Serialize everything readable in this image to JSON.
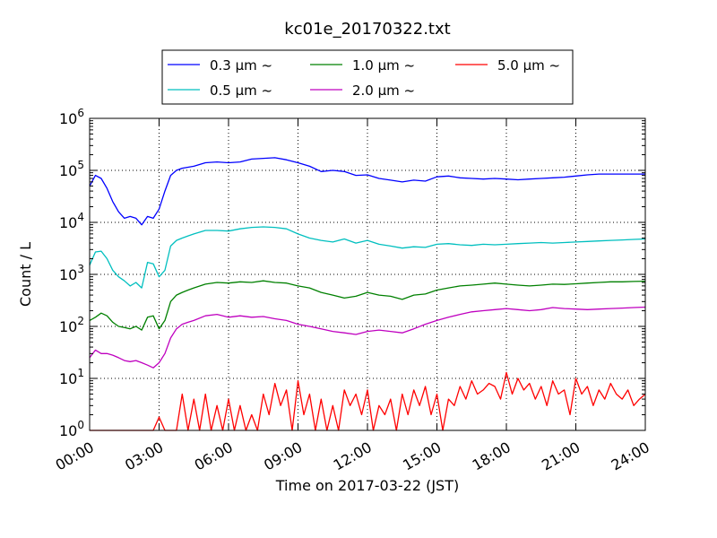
{
  "chart_data": {
    "type": "line",
    "title": "kc01e_20170322.txt",
    "xlabel": "Time on 2017-03-22 (JST)",
    "ylabel": "Count / L",
    "yscale": "log",
    "ylim": [
      1,
      1000000
    ],
    "ytick_labels": [
      {
        "base": "10",
        "exp": "0"
      },
      {
        "base": "10",
        "exp": "1"
      },
      {
        "base": "10",
        "exp": "2"
      },
      {
        "base": "10",
        "exp": "3"
      },
      {
        "base": "10",
        "exp": "4"
      },
      {
        "base": "10",
        "exp": "5"
      },
      {
        "base": "10",
        "exp": "6"
      }
    ],
    "xlim": [
      "00:00",
      "24:00"
    ],
    "xtick_labels": [
      "00:00",
      "03:00",
      "06:00",
      "09:00",
      "12:00",
      "15:00",
      "18:00",
      "21:00",
      "24:00"
    ],
    "grid": true,
    "legend_position": "top-center",
    "series": [
      {
        "name": "0.3 μm ~",
        "color": "#0000ff",
        "x": [
          0.0,
          0.25,
          0.5,
          0.75,
          1.0,
          1.25,
          1.5,
          1.75,
          2.0,
          2.25,
          2.5,
          2.75,
          3.0,
          3.25,
          3.5,
          3.75,
          4.0,
          4.25,
          4.5,
          5,
          5.5,
          6,
          6.5,
          7,
          7.5,
          8,
          8.5,
          9,
          9.5,
          10,
          10.5,
          11,
          11.5,
          12,
          12.5,
          13,
          13.5,
          14,
          14.5,
          15,
          15.5,
          16,
          16.5,
          17,
          17.5,
          18,
          18.5,
          19,
          19.5,
          20,
          20.5,
          21,
          21.5,
          22,
          22.5,
          23,
          23.5,
          24
        ],
        "values": [
          50000,
          80000,
          70000,
          45000,
          25000,
          16000,
          12000,
          13000,
          12000,
          9000,
          13000,
          12000,
          18000,
          40000,
          80000,
          100000,
          110000,
          115000,
          120000,
          140000,
          145000,
          140000,
          145000,
          165000,
          170000,
          175000,
          160000,
          140000,
          120000,
          95000,
          100000,
          95000,
          80000,
          82000,
          70000,
          65000,
          60000,
          65000,
          62000,
          75000,
          78000,
          72000,
          70000,
          68000,
          70000,
          68000,
          66000,
          68000,
          70000,
          72000,
          74000,
          78000,
          82000,
          85000,
          85000,
          85000,
          85000,
          85000
        ]
      },
      {
        "name": "0.5 μm ~",
        "color": "#00bfbf",
        "x": [
          0.0,
          0.25,
          0.5,
          0.75,
          1.0,
          1.25,
          1.5,
          1.75,
          2.0,
          2.25,
          2.5,
          2.75,
          3.0,
          3.25,
          3.5,
          3.75,
          4.0,
          4.25,
          4.5,
          5,
          5.5,
          6,
          6.5,
          7,
          7.5,
          8,
          8.5,
          9,
          9.5,
          10,
          10.5,
          11,
          11.5,
          12,
          12.5,
          13,
          13.5,
          14,
          14.5,
          15,
          15.5,
          16,
          16.5,
          17,
          17.5,
          18,
          18.5,
          19,
          19.5,
          20,
          20.5,
          21,
          21.5,
          22,
          22.5,
          23,
          23.5,
          24
        ],
        "values": [
          1500,
          2700,
          2800,
          2000,
          1200,
          900,
          750,
          600,
          700,
          550,
          1700,
          1600,
          900,
          1200,
          3500,
          4500,
          5000,
          5500,
          6000,
          7000,
          7000,
          6800,
          7500,
          8000,
          8200,
          8000,
          7500,
          6000,
          5000,
          4500,
          4200,
          4800,
          4000,
          4500,
          3800,
          3500,
          3200,
          3400,
          3300,
          3800,
          3900,
          3700,
          3600,
          3800,
          3700,
          3800,
          3900,
          4000,
          4100,
          4000,
          4100,
          4200,
          4300,
          4400,
          4500,
          4600,
          4700,
          4800
        ]
      },
      {
        "name": "1.0 μm ~",
        "color": "#008000",
        "x": [
          0.0,
          0.25,
          0.5,
          0.75,
          1.0,
          1.25,
          1.5,
          1.75,
          2.0,
          2.25,
          2.5,
          2.75,
          3.0,
          3.25,
          3.5,
          3.75,
          4.0,
          4.25,
          4.5,
          5,
          5.5,
          6,
          6.5,
          7,
          7.5,
          8,
          8.5,
          9,
          9.5,
          10,
          10.5,
          11,
          11.5,
          12,
          12.5,
          13,
          13.5,
          14,
          14.5,
          15,
          15.5,
          16,
          16.5,
          17,
          17.5,
          18,
          18.5,
          19,
          19.5,
          20,
          20.5,
          21,
          21.5,
          22,
          22.5,
          23,
          23.5,
          24
        ],
        "values": [
          130,
          150,
          180,
          160,
          120,
          100,
          95,
          90,
          100,
          85,
          150,
          160,
          90,
          130,
          300,
          400,
          450,
          500,
          550,
          650,
          700,
          680,
          720,
          700,
          750,
          700,
          680,
          600,
          550,
          450,
          400,
          350,
          380,
          450,
          400,
          380,
          330,
          400,
          420,
          500,
          550,
          600,
          620,
          650,
          680,
          650,
          620,
          600,
          620,
          650,
          640,
          660,
          680,
          700,
          720,
          720,
          730,
          740
        ]
      },
      {
        "name": "2.0 μm ~",
        "color": "#bf00bf",
        "x": [
          0.0,
          0.25,
          0.5,
          0.75,
          1.0,
          1.25,
          1.5,
          1.75,
          2.0,
          2.25,
          2.5,
          2.75,
          3.0,
          3.25,
          3.5,
          3.75,
          4.0,
          4.25,
          4.5,
          5,
          5.5,
          6,
          6.5,
          7,
          7.5,
          8,
          8.5,
          9,
          9.5,
          10,
          10.5,
          11,
          11.5,
          12,
          12.5,
          13,
          13.5,
          14,
          14.5,
          15,
          15.5,
          16,
          16.5,
          17,
          17.5,
          18,
          18.5,
          19,
          19.5,
          20,
          20.5,
          21,
          21.5,
          22,
          22.5,
          23,
          23.5,
          24
        ],
        "values": [
          25,
          35,
          30,
          30,
          28,
          25,
          22,
          21,
          22,
          20,
          18,
          16,
          20,
          30,
          60,
          90,
          110,
          120,
          130,
          160,
          170,
          150,
          160,
          150,
          155,
          140,
          130,
          110,
          100,
          90,
          80,
          75,
          70,
          80,
          85,
          80,
          75,
          90,
          110,
          130,
          150,
          170,
          190,
          200,
          210,
          220,
          210,
          200,
          210,
          230,
          220,
          215,
          210,
          215,
          220,
          225,
          230,
          235
        ]
      },
      {
        "name": "5.0 μm ~",
        "color": "#ff0000",
        "x": [
          0.0,
          0.5,
          1.0,
          1.5,
          2.0,
          2.5,
          2.75,
          3.0,
          3.25,
          3.5,
          3.75,
          4.0,
          4.25,
          4.5,
          4.75,
          5.0,
          5.25,
          5.5,
          5.75,
          6.0,
          6.25,
          6.5,
          6.75,
          7.0,
          7.25,
          7.5,
          7.75,
          8.0,
          8.25,
          8.5,
          8.75,
          9.0,
          9.25,
          9.5,
          9.75,
          10.0,
          10.25,
          10.5,
          10.75,
          11.0,
          11.25,
          11.5,
          11.75,
          12.0,
          12.25,
          12.5,
          12.75,
          13.0,
          13.25,
          13.5,
          13.75,
          14.0,
          14.25,
          14.5,
          14.75,
          15.0,
          15.25,
          15.5,
          15.75,
          16.0,
          16.25,
          16.5,
          16.75,
          17.0,
          17.25,
          17.5,
          17.75,
          18.0,
          18.25,
          18.5,
          18.75,
          19.0,
          19.25,
          19.5,
          19.75,
          20.0,
          20.25,
          20.5,
          20.75,
          21.0,
          21.25,
          21.5,
          21.75,
          22.0,
          22.25,
          22.5,
          22.75,
          23.0,
          23.25,
          23.5,
          23.75,
          24.0
        ],
        "values": [
          1,
          1,
          1,
          1,
          1,
          1,
          1,
          1.8,
          1,
          1,
          1,
          5,
          1,
          4,
          1,
          5,
          1,
          3,
          1,
          4,
          1,
          3,
          1,
          2,
          1,
          5,
          2,
          8,
          3,
          6,
          1,
          9,
          2,
          5,
          1,
          4,
          1,
          3,
          1,
          6,
          3,
          5,
          2,
          6,
          1,
          3,
          2,
          4,
          1,
          5,
          2,
          6,
          3,
          7,
          2,
          5,
          1,
          4,
          3,
          7,
          4,
          9,
          5,
          6,
          8,
          7,
          4,
          13,
          5,
          10,
          6,
          8,
          4,
          7,
          3,
          9,
          5,
          6,
          2,
          10,
          5,
          7,
          3,
          6,
          4,
          8,
          5,
          4,
          6,
          3,
          4,
          5
        ]
      }
    ]
  }
}
